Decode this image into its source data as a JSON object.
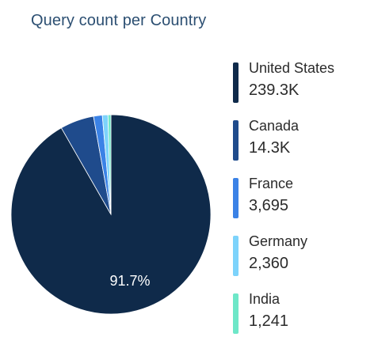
{
  "chart_data": {
    "type": "pie",
    "title": "Query count per Country",
    "categories": [
      "United States",
      "Canada",
      "France",
      "Germany",
      "India"
    ],
    "values": [
      239300,
      14300,
      3695,
      2360,
      1241
    ],
    "value_labels": [
      "239.3K",
      "14.3K",
      "3,695",
      "2,360",
      "1,241"
    ],
    "colors": [
      "#0f2a4a",
      "#1f4b8c",
      "#3b82e6",
      "#7dd3fb",
      "#6ee7c8"
    ],
    "slice_labels": [
      "91.7%",
      "",
      "",
      "",
      ""
    ],
    "legend_position": "right"
  }
}
